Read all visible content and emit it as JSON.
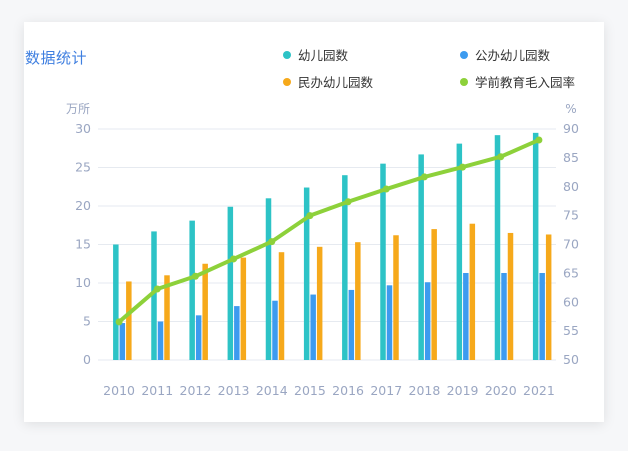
{
  "chart": {
    "title": "数据统计",
    "left_unit": "万所",
    "right_unit": "%",
    "legend": {
      "kindergartens": "幼儿园数",
      "public": "公办幼儿园数",
      "private": "民办幼儿园数",
      "gross_rate": "学前教育毛入园率"
    },
    "colors": {
      "kindergartens": "#2dc3c6",
      "public": "#3d9bef",
      "private": "#f6a91b",
      "gross_rate": "#8dd13a",
      "axis_text": "#9aa6c2",
      "grid": "#e6eaf0"
    }
  },
  "chart_data": {
    "type": "bar",
    "categories": [
      "2010",
      "2011",
      "2012",
      "2013",
      "2014",
      "2015",
      "2016",
      "2017",
      "2018",
      "2019",
      "2020",
      "2021"
    ],
    "y_left": {
      "label": "万所",
      "range": [
        0,
        30
      ],
      "ticks": [
        0,
        5,
        10,
        15,
        20,
        25,
        30
      ]
    },
    "y_right": {
      "label": "%",
      "range": [
        50,
        90
      ],
      "ticks": [
        50,
        55,
        60,
        65,
        70,
        75,
        80,
        85,
        90
      ]
    },
    "series": [
      {
        "name": "幼儿园数",
        "type": "bar",
        "axis": "left",
        "values": [
          15.0,
          16.7,
          18.1,
          19.9,
          21.0,
          22.4,
          24.0,
          25.5,
          26.7,
          28.1,
          29.2,
          29.5
        ]
      },
      {
        "name": "公办幼儿园数",
        "type": "bar",
        "axis": "left",
        "values": [
          4.8,
          5.0,
          5.8,
          7.0,
          7.7,
          8.5,
          9.1,
          9.7,
          10.1,
          11.3,
          11.3,
          11.3
        ]
      },
      {
        "name": "民办幼儿园数",
        "type": "bar",
        "axis": "left",
        "values": [
          10.2,
          11.0,
          12.5,
          13.3,
          14.0,
          14.7,
          15.3,
          16.2,
          17.0,
          17.7,
          16.5,
          16.3
        ]
      },
      {
        "name": "学前教育毛入园率",
        "type": "line",
        "axis": "right",
        "values": [
          56.6,
          62.3,
          64.5,
          67.5,
          70.5,
          75.0,
          77.4,
          79.6,
          81.7,
          83.4,
          85.2,
          88.1
        ]
      }
    ],
    "grid": true,
    "legend_position": "top-right"
  }
}
